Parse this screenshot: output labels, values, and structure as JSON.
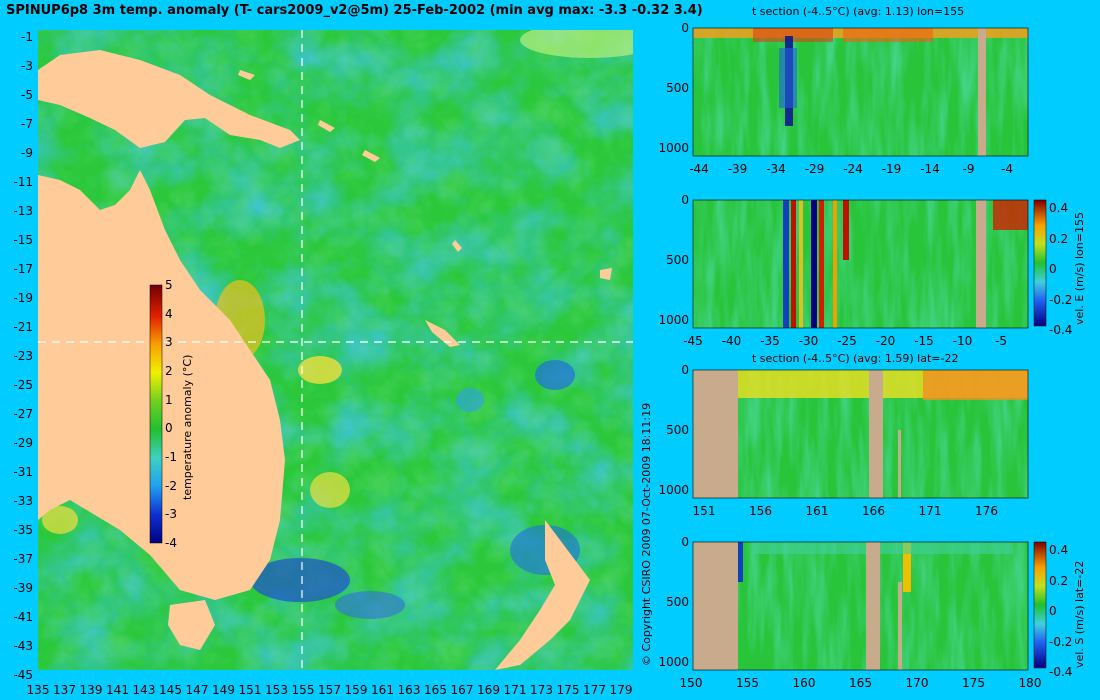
{
  "header": {
    "title": "SPINUP6p8 3m temp. anomaly (T- cars2009_v2@5m) 25-Feb-2002 (min avg max: -3.3 -0.32 3.4)"
  },
  "copyright": "© Copyright CSIRO 2009   07-Oct-2009 18:11:19",
  "colors": {
    "background": "#00ccff",
    "ocean_base": "#28c832",
    "land": "#ffcc99",
    "section_land": "#c8aa8c",
    "crosshair": "#ffffff"
  },
  "chart_data": [
    {
      "type": "heatmap",
      "name": "map",
      "title": "SPINUP6p8 3m temp. anomaly (T- cars2009_v2@5m) 25-Feb-2002 (min avg max: -3.3 -0.32 3.4)",
      "x_ticks": [
        "135",
        "137",
        "139",
        "141",
        "143",
        "145",
        "147",
        "149",
        "151",
        "153",
        "155",
        "157",
        "159",
        "161",
        "163",
        "165",
        "167",
        "169",
        "171",
        "173",
        "175",
        "177",
        "179"
      ],
      "y_ticks": [
        "-1",
        "-3",
        "-5",
        "-7",
        "-9",
        "-11",
        "-13",
        "-15",
        "-17",
        "-19",
        "-21",
        "-23",
        "-25",
        "-27",
        "-29",
        "-31",
        "-33",
        "-35",
        "-37",
        "-39",
        "-41",
        "-43",
        "-45"
      ],
      "xlim": [
        135,
        180
      ],
      "ylim": [
        -45,
        0
      ],
      "crosshair": {
        "lon": 155,
        "lat": -22
      },
      "colorbar": {
        "label": "temperature anomaly (°C)",
        "ticks": [
          "5",
          "4",
          "3",
          "2",
          "1",
          "0",
          "-1",
          "-2",
          "-3",
          "-4"
        ],
        "range": [
          -4,
          5
        ]
      }
    },
    {
      "type": "heatmap",
      "name": "section1",
      "title": "t section (-4..5°C)  (avg: 1.13)  lon=155",
      "x_ticks": [
        "-44",
        "-39",
        "-34",
        "-29",
        "-24",
        "-19",
        "-14",
        "-9",
        "-4"
      ],
      "y_ticks": [
        "0",
        "500",
        "1000"
      ]
    },
    {
      "type": "heatmap",
      "name": "section2",
      "x_ticks": [
        "-45",
        "-40",
        "-35",
        "-30",
        "-25",
        "-20",
        "-15",
        "-10",
        "-5"
      ],
      "y_ticks": [
        "0",
        "500",
        "1000"
      ],
      "colorbar": {
        "label": "vel. E (m/s)  lon=155",
        "ticks": [
          "0.4",
          "0.2",
          "0",
          "-0.2",
          "-0.4"
        ]
      }
    },
    {
      "type": "heatmap",
      "name": "section3",
      "title": "t section (-4..5°C)  (avg: 1.59)  lat=-22",
      "x_ticks": [
        "151",
        "156",
        "161",
        "166",
        "171",
        "176"
      ],
      "y_ticks": [
        "0",
        "500",
        "1000"
      ]
    },
    {
      "type": "heatmap",
      "name": "section4",
      "x_ticks": [
        "150",
        "155",
        "160",
        "165",
        "170",
        "175",
        "180"
      ],
      "y_ticks": [
        "0",
        "500",
        "1000"
      ],
      "colorbar": {
        "label": "vel. S (m/s)  lat=-22",
        "ticks": [
          "0.4",
          "0.2",
          "0",
          "-0.2",
          "-0.4"
        ]
      }
    }
  ]
}
